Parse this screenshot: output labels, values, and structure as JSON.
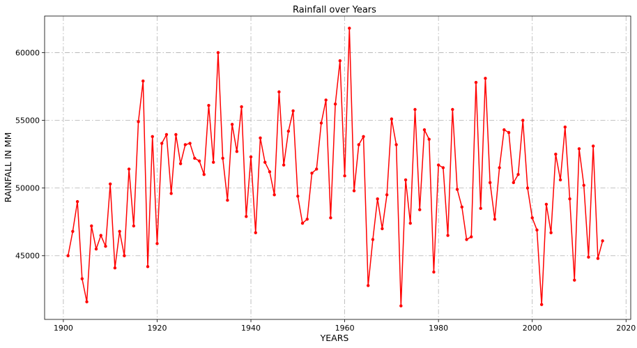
{
  "chart_data": {
    "type": "line",
    "title": "Rainfall over Years",
    "xlabel": "YEARS",
    "ylabel": "RAINFALL IN MM",
    "xlim": [
      1896,
      2021
    ],
    "ylim": [
      40300,
      62700
    ],
    "xticks": [
      "1900",
      "1920",
      "1940",
      "1960",
      "1980",
      "2000",
      "2020"
    ],
    "yticks": [
      "45000",
      "50000",
      "55000",
      "60000"
    ],
    "grid": true,
    "color": "#ff0000",
    "series": [
      {
        "x": [
          1901,
          1902,
          1903,
          1904,
          1905,
          1906,
          1907,
          1908,
          1909,
          1910,
          1911,
          1912,
          1913,
          1914,
          1915,
          1916,
          1917,
          1918,
          1919,
          1920,
          1921,
          1922,
          1923,
          1924,
          1925,
          1926,
          1927,
          1928,
          1929,
          1930,
          1931,
          1932,
          1933,
          1934,
          1935,
          1936,
          1937,
          1938,
          1939,
          1940,
          1941,
          1942,
          1943,
          1944,
          1945,
          1946,
          1947,
          1948,
          1949,
          1950,
          1951,
          1952,
          1953,
          1954,
          1955,
          1956,
          1957,
          1958,
          1959,
          1960,
          1961,
          1962,
          1963,
          1964,
          1965,
          1966,
          1967,
          1968,
          1969,
          1970,
          1971,
          1972,
          1973,
          1974,
          1975,
          1976,
          1977,
          1978,
          1979,
          1980,
          1981,
          1982,
          1983,
          1984,
          1985,
          1986,
          1987,
          1988,
          1989,
          1990,
          1991,
          1992,
          1993,
          1994,
          1995,
          1996,
          1997,
          1998,
          1999,
          2000,
          2001,
          2002,
          2003,
          2004,
          2005,
          2006,
          2007,
          2008,
          2009,
          2010,
          2011,
          2012,
          2013,
          2014,
          2015
        ],
        "y": [
          45000,
          46800,
          49000,
          43300,
          41600,
          47200,
          45500,
          46500,
          45700,
          50300,
          44100,
          46800,
          45000,
          51400,
          47200,
          54900,
          57900,
          44200,
          53800,
          45900,
          53300,
          53950,
          49600,
          53950,
          51800,
          53200,
          53300,
          52200,
          52000,
          51000,
          56100,
          51900,
          60000,
          52200,
          49100,
          54700,
          52700,
          56000,
          47900,
          52300,
          46700,
          53700,
          51900,
          51200,
          49500,
          57100,
          51700,
          54200,
          55700,
          49400,
          47400,
          47700,
          51100,
          51400,
          54800,
          56500,
          47800,
          56200,
          59400,
          50900,
          61800,
          49800,
          53200,
          53800,
          42800,
          46200,
          49200,
          47000,
          49500,
          55100,
          53200,
          41300,
          50600,
          47400,
          55800,
          48400,
          54300,
          53600,
          43800,
          51700,
          51500,
          46500,
          55800,
          49900,
          48600,
          46200,
          46400,
          57800,
          48500,
          58100,
          50400,
          47700,
          51500,
          54300,
          54100,
          50400,
          51000,
          55000,
          50000,
          47800,
          46900,
          41400,
          48800,
          46700,
          52500,
          50600,
          54500,
          49200,
          43200,
          52900,
          50200,
          44900,
          53100,
          44800,
          46100
        ]
      }
    ]
  }
}
